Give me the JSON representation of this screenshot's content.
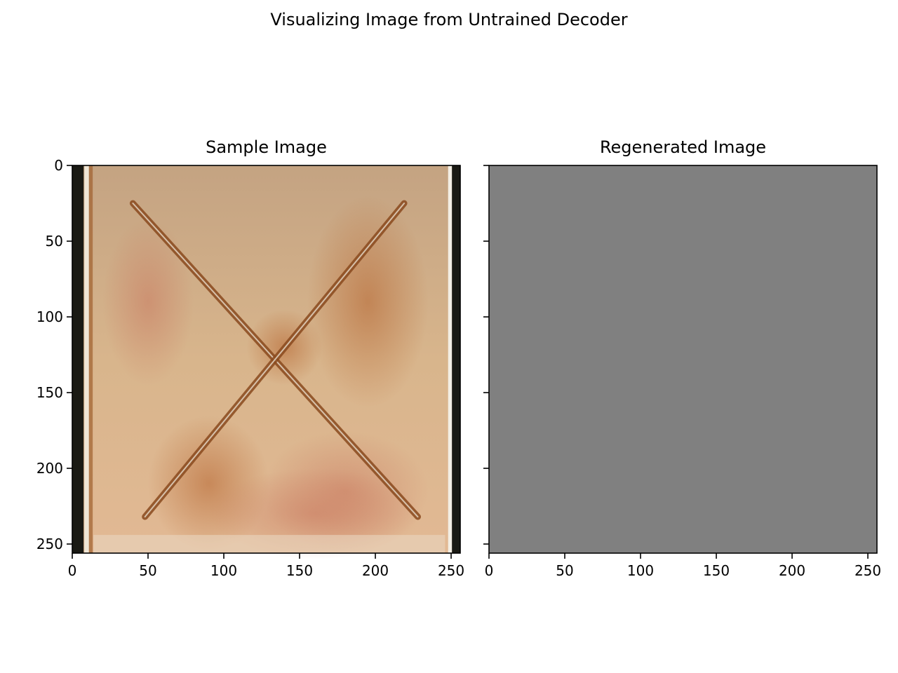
{
  "figure": {
    "suptitle": "Visualizing Image from Untrained Decoder"
  },
  "chart_data": [
    {
      "type": "image",
      "title": "Sample Image",
      "xlim": [
        0,
        256
      ],
      "ylim": [
        256,
        0
      ],
      "xticks": [
        0,
        50,
        100,
        150,
        200,
        250
      ],
      "yticks": [
        0,
        50,
        100,
        150,
        200,
        250
      ],
      "show_yticklabels": true,
      "grid": false,
      "content": {
        "background": "#c9a57e",
        "left_strip_color": "#1a1a14",
        "right_strip_color": "#1a1a14",
        "stain_color": "#b0602c",
        "cross_lines": [
          {
            "from": [
              40,
              25
            ],
            "to": [
              228,
              232
            ]
          },
          {
            "from": [
              219,
              25
            ],
            "to": [
              48,
              232
            ]
          }
        ]
      }
    },
    {
      "type": "image",
      "title": "Regenerated Image",
      "xlim": [
        0,
        256
      ],
      "ylim": [
        256,
        0
      ],
      "xticks": [
        0,
        50,
        100,
        150,
        200,
        250
      ],
      "yticks": [
        0,
        50,
        100,
        150,
        200,
        250
      ],
      "show_yticklabels": false,
      "grid": false,
      "content": {
        "background": "#808080"
      }
    }
  ]
}
